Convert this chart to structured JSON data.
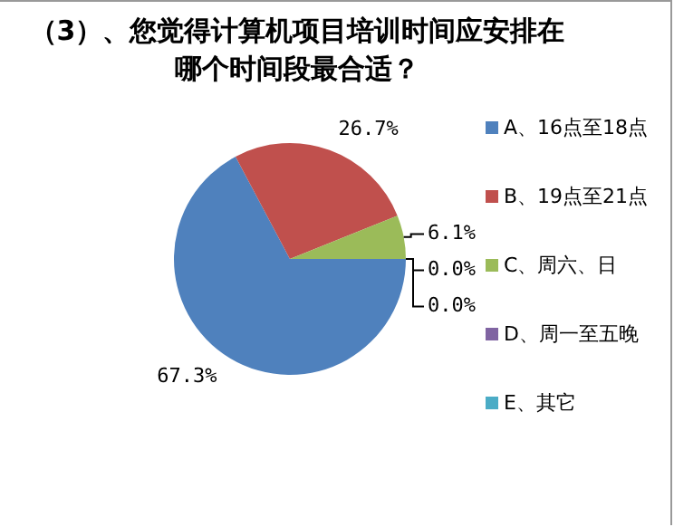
{
  "chart_data": {
    "type": "pie",
    "title": "（3）、您觉得计算机项目培训时间应安排在哪个时间段最合适？",
    "categories": [
      "A、16点至18点",
      "B、19点至21点",
      "C、周六、日",
      "D、周一至五晚",
      "E、其它"
    ],
    "values": [
      67.3,
      26.7,
      6.1,
      0.0,
      0.0
    ],
    "value_labels": [
      "67.3%",
      "26.7%",
      "6.1%",
      "0.0%",
      "0.0%"
    ],
    "colors": [
      "#4f81bd",
      "#c0504d",
      "#9bbb59",
      "#8064a2",
      "#4bacc6"
    ],
    "legend": "right"
  }
}
